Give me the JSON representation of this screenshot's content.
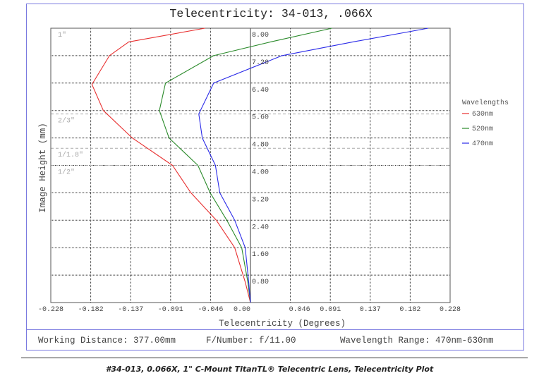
{
  "chart_data": {
    "type": "line",
    "title": "Telecentricity: 34-013, .066X",
    "xlabel": "Telecentricity (Degrees)",
    "ylabel": "Image Height (mm)",
    "xlim": [
      -0.228,
      0.228
    ],
    "ylim": [
      0,
      8.0
    ],
    "x_ticks": [
      "-0.228",
      "-0.182",
      "-0.137",
      "-0.091",
      "-0.046",
      "0.00",
      "0.046",
      "0.091",
      "0.137",
      "0.182",
      "0.228"
    ],
    "y_ticks": [
      "8.00",
      "7.20",
      "6.40",
      "5.60",
      "4.80",
      "4.00",
      "3.20",
      "2.40",
      "1.60",
      "0.80"
    ],
    "grid": true,
    "legend_title": "Wavelengths",
    "legend_position": "right",
    "sensor_markers": [
      {
        "label": "1\"",
        "height": 8.0
      },
      {
        "label": "2/3\"",
        "height": 5.5
      },
      {
        "label": "1/1.8\"",
        "height": 4.5
      },
      {
        "label": "1/2\"",
        "height": 4.0
      }
    ],
    "series": [
      {
        "name": "630nm",
        "color": "#e83030",
        "points": [
          [
            0,
            0
          ],
          [
            -0.006,
            0.6
          ],
          [
            -0.018,
            1.6
          ],
          [
            -0.039,
            2.4
          ],
          [
            -0.068,
            3.2
          ],
          [
            -0.089,
            4.0
          ],
          [
            -0.135,
            4.8
          ],
          [
            -0.168,
            5.6
          ],
          [
            -0.181,
            6.36
          ],
          [
            -0.161,
            7.2
          ],
          [
            -0.139,
            7.6
          ],
          [
            -0.052,
            8.0
          ]
        ]
      },
      {
        "name": "520nm",
        "color": "#2a8a2a",
        "points": [
          [
            0,
            0
          ],
          [
            -0.003,
            0.6
          ],
          [
            -0.01,
            1.6
          ],
          [
            -0.027,
            2.4
          ],
          [
            -0.046,
            3.2
          ],
          [
            -0.06,
            4.0
          ],
          [
            -0.093,
            4.8
          ],
          [
            -0.104,
            5.6
          ],
          [
            -0.097,
            6.4
          ],
          [
            -0.042,
            7.2
          ],
          [
            0.023,
            7.6
          ],
          [
            0.093,
            8.0
          ]
        ]
      },
      {
        "name": "470nm",
        "color": "#2a2ae8",
        "points": [
          [
            0,
            0
          ],
          [
            -0.002,
            0.6
          ],
          [
            -0.006,
            1.6
          ],
          [
            -0.018,
            2.4
          ],
          [
            -0.035,
            3.2
          ],
          [
            -0.04,
            4.0
          ],
          [
            -0.055,
            4.8
          ],
          [
            -0.059,
            5.5
          ],
          [
            -0.042,
            6.4
          ],
          [
            0.036,
            7.2
          ],
          [
            0.117,
            7.6
          ],
          [
            0.203,
            8.0
          ]
        ]
      }
    ]
  },
  "info": {
    "working_distance": "Working Distance: 377.00mm",
    "f_number": "F/Number: f/11.00",
    "wavelength_range": "Wavelength Range: 470nm-630nm"
  },
  "caption": "#34-013, 0.066X, 1\" C-Mount TitanTL® Telecentric Lens, Telecentricity Plot"
}
